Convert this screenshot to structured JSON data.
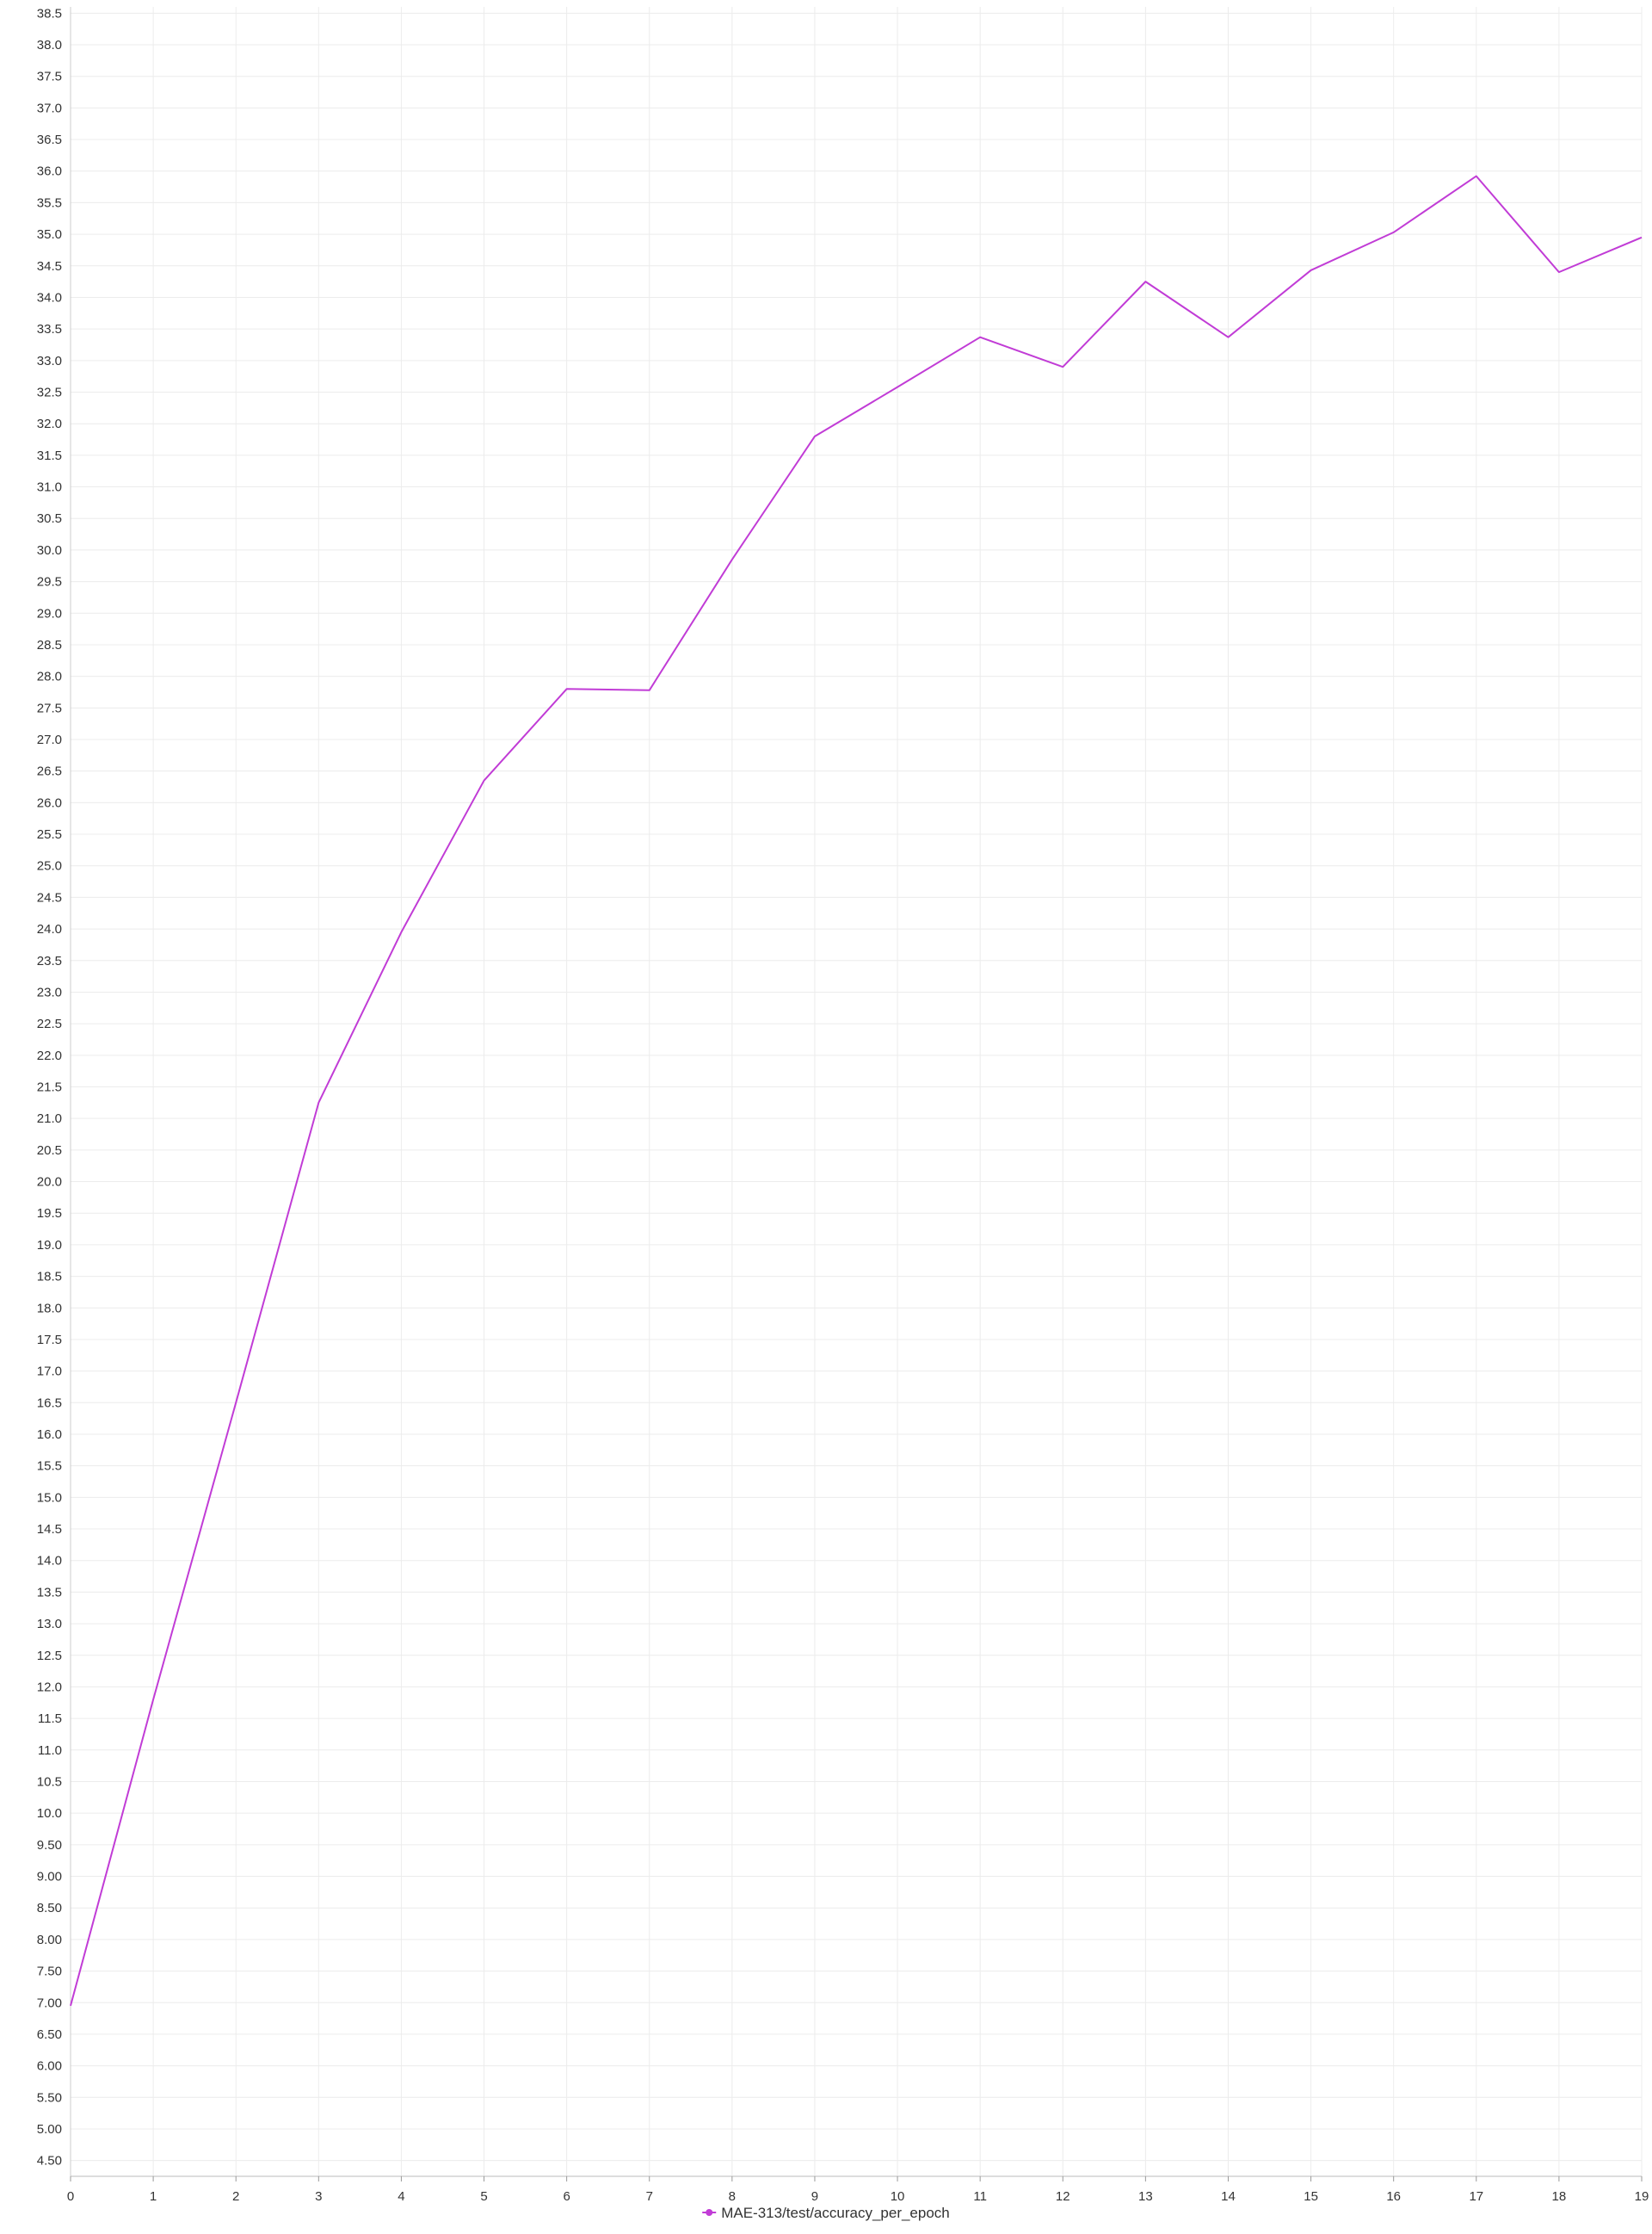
{
  "chart_data": {
    "type": "line",
    "title": "",
    "xlabel": "",
    "ylabel": "",
    "xlim": [
      0,
      19
    ],
    "ylim": [
      4.25,
      38.6
    ],
    "grid": true,
    "legend_position": "bottom-center",
    "x_ticks": [
      "0",
      "1",
      "2",
      "3",
      "4",
      "5",
      "6",
      "7",
      "8",
      "9",
      "10",
      "11",
      "12",
      "13",
      "14",
      "15",
      "16",
      "17",
      "18",
      "19"
    ],
    "y_ticks": [
      "4.50",
      "5.00",
      "5.50",
      "6.00",
      "6.50",
      "7.00",
      "7.50",
      "8.00",
      "8.50",
      "9.00",
      "9.50",
      "10.0",
      "10.5",
      "11.0",
      "11.5",
      "12.0",
      "12.5",
      "13.0",
      "13.5",
      "14.0",
      "14.5",
      "15.0",
      "15.5",
      "16.0",
      "16.5",
      "17.0",
      "17.5",
      "18.0",
      "18.5",
      "19.0",
      "19.5",
      "20.0",
      "20.5",
      "21.0",
      "21.5",
      "22.0",
      "22.5",
      "23.0",
      "23.5",
      "24.0",
      "24.5",
      "25.0",
      "25.5",
      "26.0",
      "26.5",
      "27.0",
      "27.5",
      "28.0",
      "28.5",
      "29.0",
      "29.5",
      "30.0",
      "30.5",
      "31.0",
      "31.5",
      "32.0",
      "32.5",
      "33.0",
      "33.5",
      "34.0",
      "34.5",
      "35.0",
      "35.5",
      "36.0",
      "36.5",
      "37.0",
      "37.5",
      "38.0",
      "38.5"
    ],
    "series": [
      {
        "name": "MAE-313/test/accuracy_per_epoch",
        "color": "#c13cd6",
        "x": [
          0,
          1,
          2,
          3,
          4,
          5,
          6,
          7,
          8,
          9,
          10,
          11,
          12,
          13,
          14,
          15,
          16,
          17,
          18,
          19
        ],
        "values": [
          6.95,
          11.8,
          16.5,
          21.25,
          23.95,
          26.35,
          27.8,
          27.78,
          29.85,
          31.8,
          32.58,
          33.37,
          32.9,
          34.25,
          33.37,
          34.43,
          35.03,
          35.92,
          34.4,
          34.95
        ]
      }
    ]
  }
}
